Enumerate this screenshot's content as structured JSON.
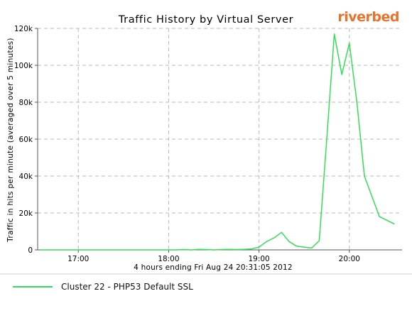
{
  "logo": {
    "text": "riverbed",
    "color": "#e8732c"
  },
  "chart_data": {
    "type": "line",
    "title": "Traffic History by Virtual Server",
    "ylabel": "Traffic in hits per minute (averaged over 5 minutes)",
    "xlabel": "4 hours ending Fri Aug 24 20:31:05 2012",
    "x_ticks": [
      "17:00",
      "18:00",
      "19:00",
      "20:00"
    ],
    "y_ticks": [
      "0",
      "20k",
      "40k",
      "60k",
      "80k",
      "100k",
      "120k"
    ],
    "ylim": [
      0,
      120000
    ],
    "grid": true,
    "legend_position": "bottom-left",
    "series": [
      {
        "name": "Cluster 22 - PHP53 Default SSL",
        "color": "#33dd55",
        "x": [
          "16:35",
          "16:40",
          "16:45",
          "16:50",
          "16:55",
          "17:00",
          "17:05",
          "17:10",
          "17:15",
          "17:20",
          "17:25",
          "17:30",
          "17:35",
          "17:40",
          "17:45",
          "17:50",
          "17:55",
          "18:00",
          "18:05",
          "18:10",
          "18:15",
          "18:20",
          "18:25",
          "18:30",
          "18:35",
          "18:40",
          "18:45",
          "18:50",
          "18:55",
          "19:00",
          "19:05",
          "19:10",
          "19:15",
          "19:20",
          "19:25",
          "19:30",
          "19:35",
          "19:40",
          "19:45",
          "19:50",
          "19:55",
          "20:00",
          "20:05",
          "20:10",
          "20:15",
          "20:20",
          "20:25",
          "20:30"
        ],
        "values": [
          0,
          0,
          0,
          0,
          0,
          0,
          0,
          0,
          0,
          0,
          0,
          0,
          0,
          0,
          0,
          0,
          0,
          0,
          0,
          200,
          0,
          300,
          200,
          0,
          200,
          300,
          200,
          300,
          500,
          1500,
          4500,
          6500,
          9500,
          4500,
          2000,
          1500,
          1000,
          5000,
          60000,
          117000,
          95000,
          112000,
          80000,
          40000,
          29000,
          18000,
          16000,
          14000
        ]
      }
    ]
  }
}
